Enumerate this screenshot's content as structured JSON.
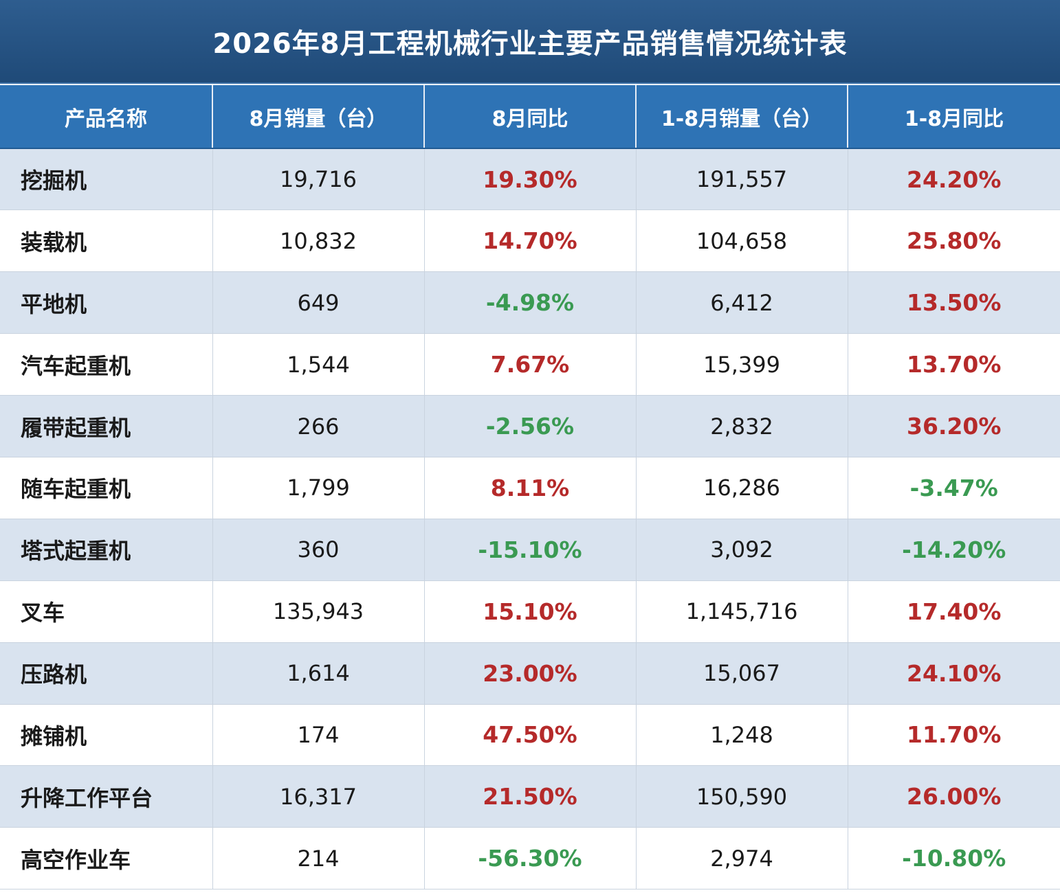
{
  "title": "2026年8月工程机械行业主要产品销售情况统计表",
  "headers": [
    "产品名称",
    "8月销量（台）",
    "8月同比",
    "1-8月销量（台）",
    "1-8月同比"
  ],
  "colors": {
    "positive": "#b52a2a",
    "negative": "#3a9a52",
    "header": "#2e73b5",
    "title": "#1f4a78"
  },
  "rows": [
    {
      "name": "挖掘机",
      "aug_sales": "19,716",
      "aug_yoy": "19.30%",
      "ytd_sales": "191,557",
      "ytd_yoy": "24.20%"
    },
    {
      "name": "装载机",
      "aug_sales": "10,832",
      "aug_yoy": "14.70%",
      "ytd_sales": "104,658",
      "ytd_yoy": "25.80%"
    },
    {
      "name": "平地机",
      "aug_sales": "649",
      "aug_yoy": "-4.98%",
      "ytd_sales": "6,412",
      "ytd_yoy": "13.50%"
    },
    {
      "name": "汽车起重机",
      "aug_sales": "1,544",
      "aug_yoy": "7.67%",
      "ytd_sales": "15,399",
      "ytd_yoy": "13.70%"
    },
    {
      "name": "履带起重机",
      "aug_sales": "266",
      "aug_yoy": "-2.56%",
      "ytd_sales": "2,832",
      "ytd_yoy": "36.20%"
    },
    {
      "name": "随车起重机",
      "aug_sales": "1,799",
      "aug_yoy": "8.11%",
      "ytd_sales": "16,286",
      "ytd_yoy": "-3.47%"
    },
    {
      "name": "塔式起重机",
      "aug_sales": "360",
      "aug_yoy": "-15.10%",
      "ytd_sales": "3,092",
      "ytd_yoy": "-14.20%"
    },
    {
      "name": "叉车",
      "aug_sales": "135,943",
      "aug_yoy": "15.10%",
      "ytd_sales": "1,145,716",
      "ytd_yoy": "17.40%"
    },
    {
      "name": "压路机",
      "aug_sales": "1,614",
      "aug_yoy": "23.00%",
      "ytd_sales": "15,067",
      "ytd_yoy": "24.10%"
    },
    {
      "name": "摊铺机",
      "aug_sales": "174",
      "aug_yoy": "47.50%",
      "ytd_sales": "1,248",
      "ytd_yoy": "11.70%"
    },
    {
      "name": "升降工作平台",
      "aug_sales": "16,317",
      "aug_yoy": "21.50%",
      "ytd_sales": "150,590",
      "ytd_yoy": "26.00%"
    },
    {
      "name": "高空作业车",
      "aug_sales": "214",
      "aug_yoy": "-56.30%",
      "ytd_sales": "2,974",
      "ytd_yoy": "-10.80%"
    }
  ]
}
